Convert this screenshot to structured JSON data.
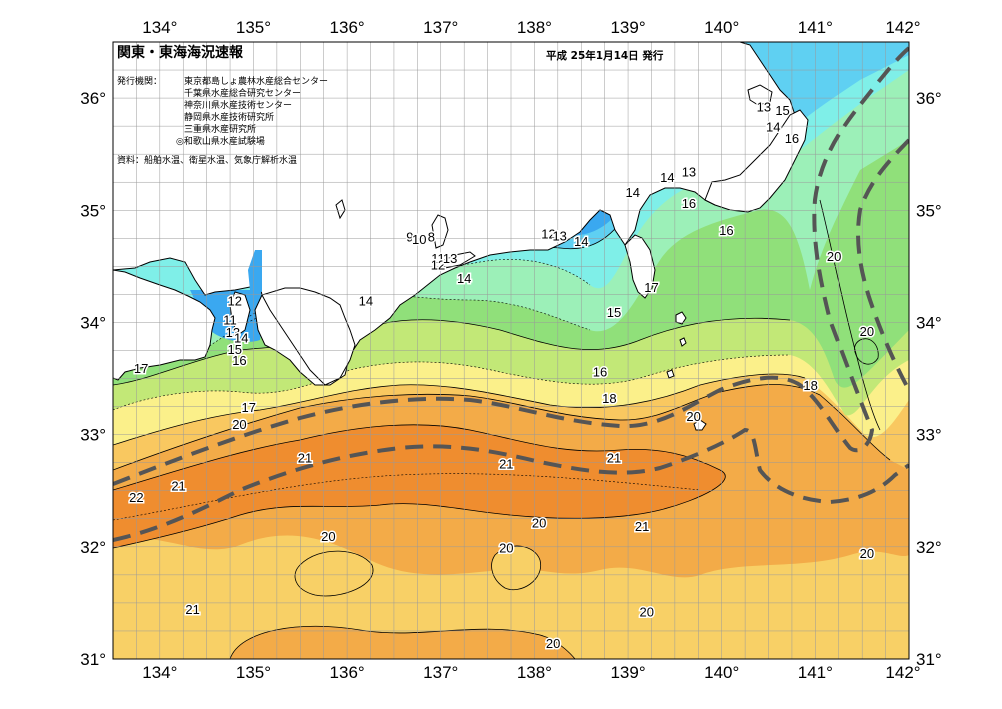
{
  "header": {
    "title": "関東・東海海況速報",
    "date": "平成 25年1月14日 発行",
    "institutions_label": "発行機関：",
    "institutions": [
      "東京都島しょ農林水産総合センター",
      "千葉県水産総合研究センター",
      "神奈川県水産技術センター",
      "静岡県水産技術研究所",
      "三重県水産研究所",
      "◎和歌山県水産試験場"
    ],
    "source": "資料：船舶水温、衛星水温、気象庁解析水温"
  },
  "axes": {
    "longitude_labels": [
      "134°",
      "135°",
      "136°",
      "137°",
      "138°",
      "139°",
      "140°",
      "141°",
      "142°"
    ],
    "latitude_labels": [
      "36°",
      "35°",
      "34°",
      "33°",
      "32°",
      "31°"
    ]
  },
  "colors": {
    "land": "#ffffff",
    "coast": "#000000",
    "grid": "#9a9a9a",
    "kuroshio_line": "#555555",
    "sst_8": "#6a2fb0",
    "sst_9": "#2a4fc8",
    "sst_11": "#2f7fe8",
    "sst_12": "#3aa8f0",
    "sst_13": "#5fd0f2",
    "sst_14": "#7fefe8",
    "sst_15": "#9cf0b8",
    "sst_16": "#90e07a",
    "sst_17": "#c2e877",
    "sst_18": "#fbf08a",
    "sst_19": "#f9c860",
    "sst_20": "#f8d066",
    "sst_21": "#f3ab48",
    "sst_22": "#ef8d2f"
  },
  "contour_labels": [
    {
      "text": "17",
      "lon": 133.8,
      "lat": 33.55
    },
    {
      "text": "17",
      "lon": 134.95,
      "lat": 33.2
    },
    {
      "text": "20",
      "lon": 134.85,
      "lat": 33.05
    },
    {
      "text": "21",
      "lon": 135.55,
      "lat": 32.75
    },
    {
      "text": "21",
      "lon": 134.2,
      "lat": 32.5
    },
    {
      "text": "22",
      "lon": 133.75,
      "lat": 32.4
    },
    {
      "text": "20",
      "lon": 135.8,
      "lat": 32.05
    },
    {
      "text": "21",
      "lon": 134.35,
      "lat": 31.4
    },
    {
      "text": "12",
      "lon": 134.8,
      "lat": 34.15
    },
    {
      "text": "11",
      "lon": 134.75,
      "lat": 33.98
    },
    {
      "text": "13",
      "lon": 134.78,
      "lat": 33.87
    },
    {
      "text": "14",
      "lon": 134.87,
      "lat": 33.82
    },
    {
      "text": "15",
      "lon": 134.8,
      "lat": 33.72
    },
    {
      "text": "16",
      "lon": 134.85,
      "lat": 33.62
    },
    {
      "text": "14",
      "lon": 136.2,
      "lat": 34.15
    },
    {
      "text": "9",
      "lon": 136.67,
      "lat": 34.72
    },
    {
      "text": "10",
      "lon": 136.77,
      "lat": 34.7
    },
    {
      "text": "8",
      "lon": 136.9,
      "lat": 34.72
    },
    {
      "text": "11",
      "lon": 136.97,
      "lat": 34.53
    },
    {
      "text": "12",
      "lon": 136.97,
      "lat": 34.47
    },
    {
      "text": "13",
      "lon": 137.1,
      "lat": 34.53
    },
    {
      "text": "14",
      "lon": 137.25,
      "lat": 34.35
    },
    {
      "text": "12",
      "lon": 138.15,
      "lat": 34.75
    },
    {
      "text": "13",
      "lon": 138.27,
      "lat": 34.73
    },
    {
      "text": "14",
      "lon": 138.5,
      "lat": 34.68
    },
    {
      "text": "15",
      "lon": 138.85,
      "lat": 34.05
    },
    {
      "text": "16",
      "lon": 138.7,
      "lat": 33.52
    },
    {
      "text": "18",
      "lon": 138.8,
      "lat": 33.28
    },
    {
      "text": "14",
      "lon": 139.05,
      "lat": 35.12
    },
    {
      "text": "17",
      "lon": 139.25,
      "lat": 34.27
    },
    {
      "text": "14",
      "lon": 139.42,
      "lat": 35.25
    },
    {
      "text": "13",
      "lon": 139.65,
      "lat": 35.3
    },
    {
      "text": "16",
      "lon": 139.65,
      "lat": 35.02
    },
    {
      "text": "16",
      "lon": 140.05,
      "lat": 34.78
    },
    {
      "text": "13",
      "lon": 140.45,
      "lat": 35.88
    },
    {
      "text": "15",
      "lon": 140.65,
      "lat": 35.85
    },
    {
      "text": "14",
      "lon": 140.55,
      "lat": 35.7
    },
    {
      "text": "16",
      "lon": 140.75,
      "lat": 35.6
    },
    {
      "text": "20",
      "lon": 141.2,
      "lat": 34.55
    },
    {
      "text": "20",
      "lon": 141.55,
      "lat": 33.88
    },
    {
      "text": "18",
      "lon": 140.95,
      "lat": 33.4
    },
    {
      "text": "20",
      "lon": 139.7,
      "lat": 33.12
    },
    {
      "text": "21",
      "lon": 137.7,
      "lat": 32.7
    },
    {
      "text": "21",
      "lon": 138.85,
      "lat": 32.75
    },
    {
      "text": "20",
      "lon": 138.05,
      "lat": 32.17
    },
    {
      "text": "20",
      "lon": 137.7,
      "lat": 31.95
    },
    {
      "text": "21",
      "lon": 139.15,
      "lat": 32.14
    },
    {
      "text": "20",
      "lon": 139.2,
      "lat": 31.38
    },
    {
      "text": "20",
      "lon": 138.2,
      "lat": 31.1
    },
    {
      "text": "20",
      "lon": 141.55,
      "lat": 31.9
    }
  ]
}
